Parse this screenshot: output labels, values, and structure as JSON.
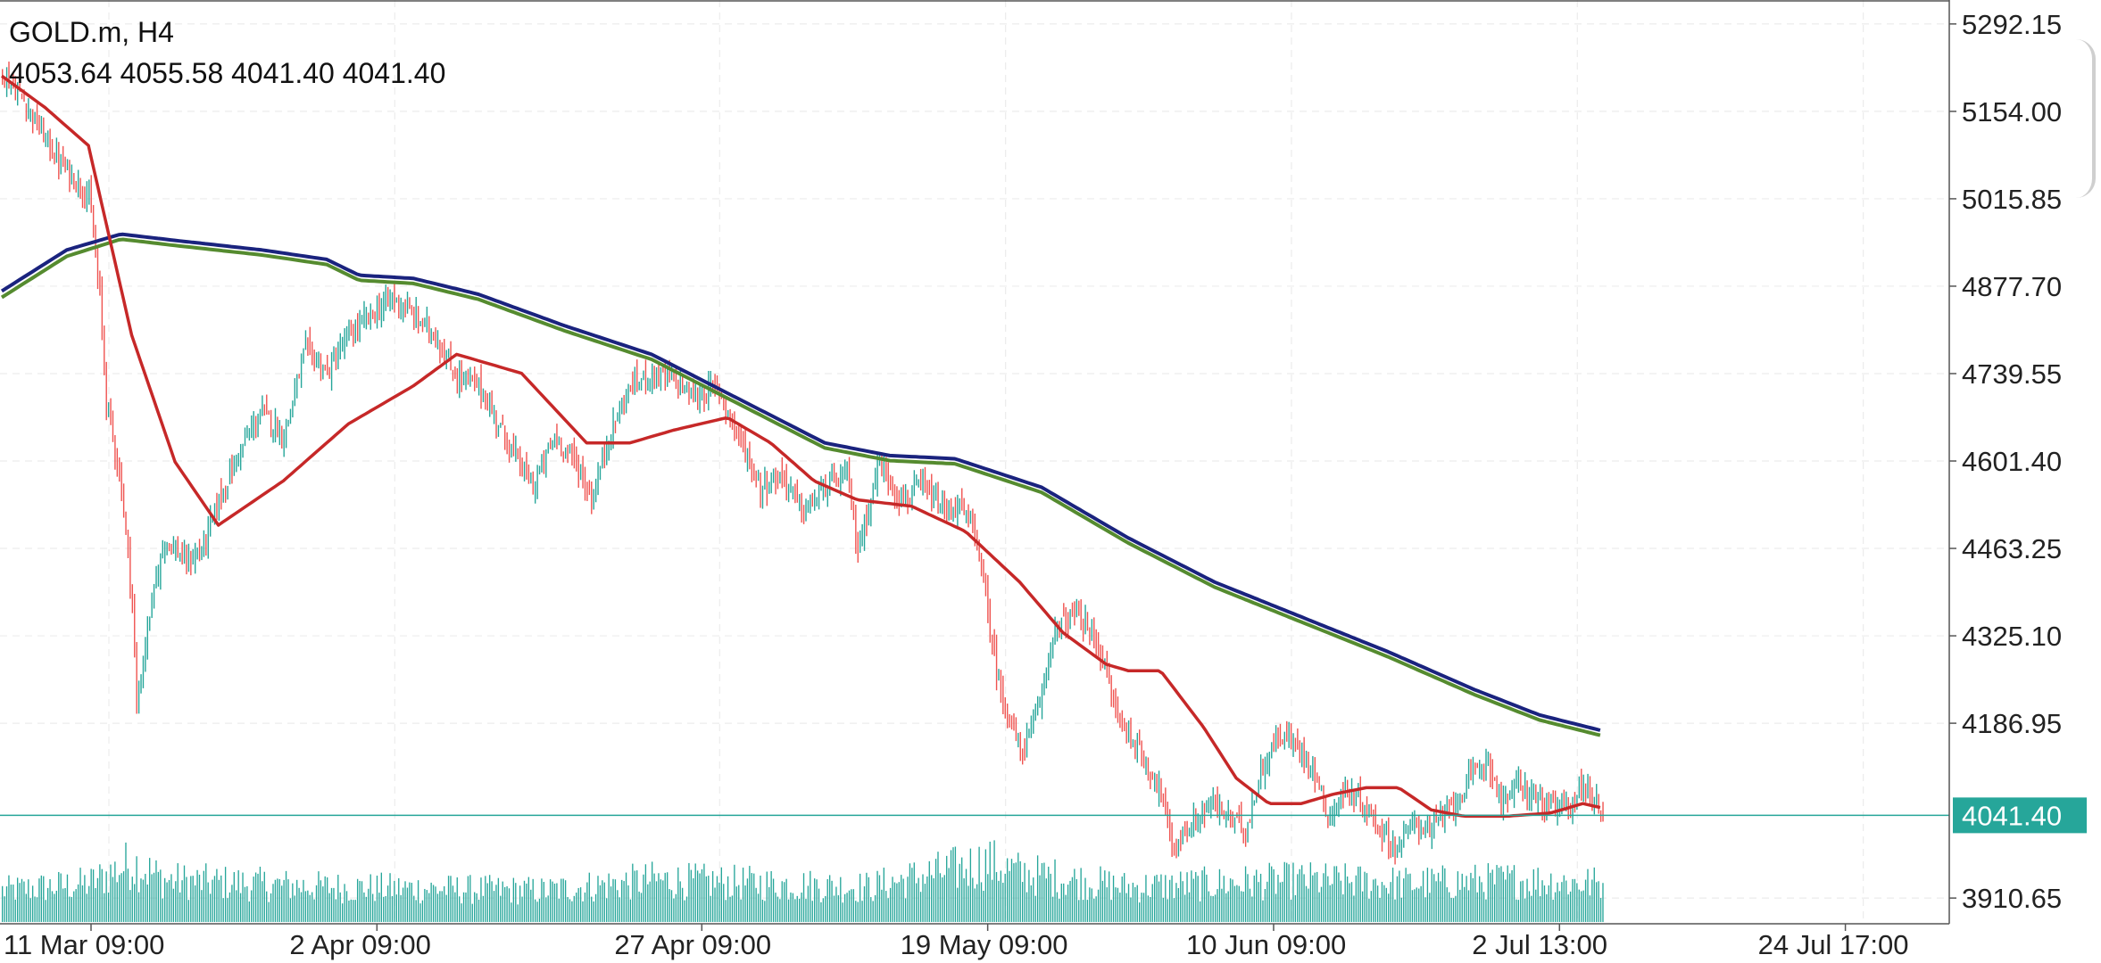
{
  "header": {
    "symbol_line": "GOLD.m, H4",
    "ohlc_line": "4053.64 4055.58 4041.40 4041.40"
  },
  "colors": {
    "background": "#ffffff",
    "grid": "#ececec",
    "axis": "#555555",
    "bull_candle": "#26a69a",
    "bear_candle": "#ef5350",
    "volume": "#26a69a",
    "current_price_line": "#26a69a",
    "ma_fast": "#c62828",
    "ma_slow_blue": "#1a237e",
    "ma_slow_green": "#558b2f"
  },
  "chart_data": {
    "type": "candlestick",
    "symbol": "GOLD.m",
    "timeframe": "H4",
    "ohlc_last": {
      "open": 4053.64,
      "high": 4055.58,
      "low": 4041.4,
      "close": 4041.4
    },
    "current_price": 4041.4,
    "current_price_label": "4041.40",
    "y_ticks": [
      {
        "value": 5292.15,
        "label": "5292.15"
      },
      {
        "value": 5154.0,
        "label": "5154.00"
      },
      {
        "value": 5015.85,
        "label": "5015.85"
      },
      {
        "value": 4877.7,
        "label": "4877.70"
      },
      {
        "value": 4739.55,
        "label": "4739.55"
      },
      {
        "value": 4601.4,
        "label": "4601.40"
      },
      {
        "value": 4463.25,
        "label": "4463.25"
      },
      {
        "value": 4325.1,
        "label": "4325.10"
      },
      {
        "value": 4186.95,
        "label": "4186.95"
      },
      {
        "value": 3910.65,
        "label": "3910.65"
      }
    ],
    "ylim": [
      3870,
      5330
    ],
    "x_labels": [
      {
        "bar": 0,
        "label": "11 Mar 09:00"
      },
      {
        "bar": 132,
        "label": "2 Apr 09:00"
      },
      {
        "bar": 282,
        "label": "27 Apr 09:00"
      },
      {
        "bar": 414,
        "label": "19 May 09:00"
      },
      {
        "bar": 546,
        "label": "10 Jun 09:00"
      },
      {
        "bar": 678,
        "label": "2 Jul 13:00"
      },
      {
        "bar": 810,
        "label": "24 Jul 17:00"
      }
    ],
    "total_bars": 900,
    "last_bar_index": 739,
    "close_path": [
      [
        0,
        5215
      ],
      [
        10,
        5170
      ],
      [
        25,
        5080
      ],
      [
        40,
        5020
      ],
      [
        45,
        4860
      ],
      [
        48,
        4700
      ],
      [
        55,
        4560
      ],
      [
        60,
        4380
      ],
      [
        62,
        4210
      ],
      [
        68,
        4360
      ],
      [
        75,
        4480
      ],
      [
        85,
        4440
      ],
      [
        92,
        4460
      ],
      [
        100,
        4540
      ],
      [
        110,
        4620
      ],
      [
        120,
        4680
      ],
      [
        130,
        4640
      ],
      [
        140,
        4780
      ],
      [
        150,
        4740
      ],
      [
        160,
        4800
      ],
      [
        170,
        4830
      ],
      [
        180,
        4860
      ],
      [
        190,
        4830
      ],
      [
        200,
        4800
      ],
      [
        208,
        4740
      ],
      [
        220,
        4720
      ],
      [
        235,
        4620
      ],
      [
        245,
        4560
      ],
      [
        255,
        4640
      ],
      [
        265,
        4600
      ],
      [
        272,
        4540
      ],
      [
        280,
        4640
      ],
      [
        290,
        4720
      ],
      [
        300,
        4740
      ],
      [
        310,
        4730
      ],
      [
        320,
        4700
      ],
      [
        330,
        4720
      ],
      [
        340,
        4640
      ],
      [
        350,
        4560
      ],
      [
        360,
        4580
      ],
      [
        370,
        4520
      ],
      [
        380,
        4560
      ],
      [
        390,
        4580
      ],
      [
        395,
        4460
      ],
      [
        405,
        4600
      ],
      [
        415,
        4540
      ],
      [
        425,
        4560
      ],
      [
        435,
        4520
      ],
      [
        442,
        4530
      ],
      [
        450,
        4480
      ],
      [
        455,
        4360
      ],
      [
        460,
        4250
      ],
      [
        470,
        4140
      ],
      [
        478,
        4200
      ],
      [
        485,
        4330
      ],
      [
        495,
        4360
      ],
      [
        505,
        4320
      ],
      [
        515,
        4200
      ],
      [
        525,
        4140
      ],
      [
        535,
        4080
      ],
      [
        540,
        3990
      ],
      [
        548,
        4020
      ],
      [
        558,
        4060
      ],
      [
        566,
        4040
      ],
      [
        574,
        4020
      ],
      [
        582,
        4120
      ],
      [
        590,
        4170
      ],
      [
        598,
        4150
      ],
      [
        605,
        4120
      ],
      [
        612,
        4040
      ],
      [
        620,
        4080
      ],
      [
        628,
        4060
      ],
      [
        636,
        4020
      ],
      [
        644,
        3990
      ],
      [
        652,
        4030
      ],
      [
        660,
        4020
      ],
      [
        670,
        4060
      ],
      [
        680,
        4110
      ],
      [
        686,
        4130
      ],
      [
        692,
        4060
      ],
      [
        700,
        4090
      ],
      [
        708,
        4070
      ],
      [
        716,
        4050
      ],
      [
        724,
        4060
      ],
      [
        730,
        4090
      ],
      [
        735,
        4070
      ],
      [
        739,
        4041.4
      ]
    ],
    "series": [
      {
        "name": "",
        "role": "ma_fast",
        "points": [
          [
            0,
            5210
          ],
          [
            20,
            5160
          ],
          [
            40,
            5100
          ],
          [
            60,
            4800
          ],
          [
            80,
            4600
          ],
          [
            100,
            4500
          ],
          [
            130,
            4570
          ],
          [
            160,
            4660
          ],
          [
            190,
            4720
          ],
          [
            210,
            4770
          ],
          [
            240,
            4740
          ],
          [
            270,
            4630
          ],
          [
            290,
            4630
          ],
          [
            310,
            4650
          ],
          [
            335,
            4670
          ],
          [
            355,
            4630
          ],
          [
            375,
            4570
          ],
          [
            395,
            4540
          ],
          [
            420,
            4530
          ],
          [
            445,
            4490
          ],
          [
            470,
            4410
          ],
          [
            490,
            4330
          ],
          [
            510,
            4280
          ],
          [
            520,
            4270
          ],
          [
            535,
            4270
          ],
          [
            555,
            4180
          ],
          [
            570,
            4100
          ],
          [
            585,
            4060
          ],
          [
            600,
            4060
          ],
          [
            615,
            4075
          ],
          [
            630,
            4085
          ],
          [
            645,
            4085
          ],
          [
            660,
            4050
          ],
          [
            675,
            4040
          ],
          [
            695,
            4040
          ],
          [
            715,
            4045
          ],
          [
            730,
            4060
          ],
          [
            739,
            4053
          ]
        ]
      },
      {
        "name": "",
        "role": "ma_slow_blue",
        "points": [
          [
            0,
            4870
          ],
          [
            30,
            4935
          ],
          [
            55,
            4960
          ],
          [
            80,
            4950
          ],
          [
            120,
            4935
          ],
          [
            150,
            4920
          ],
          [
            165,
            4895
          ],
          [
            190,
            4890
          ],
          [
            220,
            4865
          ],
          [
            260,
            4815
          ],
          [
            300,
            4770
          ],
          [
            340,
            4700
          ],
          [
            380,
            4630
          ],
          [
            410,
            4610
          ],
          [
            440,
            4605
          ],
          [
            480,
            4560
          ],
          [
            520,
            4480
          ],
          [
            560,
            4410
          ],
          [
            600,
            4355
          ],
          [
            640,
            4300
          ],
          [
            680,
            4240
          ],
          [
            710,
            4200
          ],
          [
            739,
            4175
          ]
        ]
      },
      {
        "name": "",
        "role": "ma_slow_green",
        "points": [
          [
            0,
            4860
          ],
          [
            30,
            4925
          ],
          [
            55,
            4952
          ],
          [
            80,
            4942
          ],
          [
            120,
            4927
          ],
          [
            150,
            4912
          ],
          [
            165,
            4887
          ],
          [
            190,
            4882
          ],
          [
            220,
            4857
          ],
          [
            260,
            4807
          ],
          [
            300,
            4762
          ],
          [
            340,
            4692
          ],
          [
            380,
            4622
          ],
          [
            410,
            4602
          ],
          [
            440,
            4597
          ],
          [
            480,
            4552
          ],
          [
            520,
            4472
          ],
          [
            560,
            4402
          ],
          [
            600,
            4347
          ],
          [
            640,
            4292
          ],
          [
            680,
            4232
          ],
          [
            710,
            4192
          ],
          [
            739,
            4167
          ]
        ]
      }
    ],
    "volume_profile": [
      [
        0,
        0.45
      ],
      [
        40,
        0.55
      ],
      [
        60,
        0.85
      ],
      [
        75,
        0.6
      ],
      [
        150,
        0.5
      ],
      [
        250,
        0.45
      ],
      [
        300,
        0.6
      ],
      [
        400,
        0.5
      ],
      [
        455,
        0.85
      ],
      [
        470,
        0.7
      ],
      [
        520,
        0.5
      ],
      [
        600,
        0.6
      ],
      [
        650,
        0.55
      ],
      [
        700,
        0.6
      ],
      [
        739,
        0.55
      ]
    ],
    "grid": true,
    "legend": "none"
  }
}
